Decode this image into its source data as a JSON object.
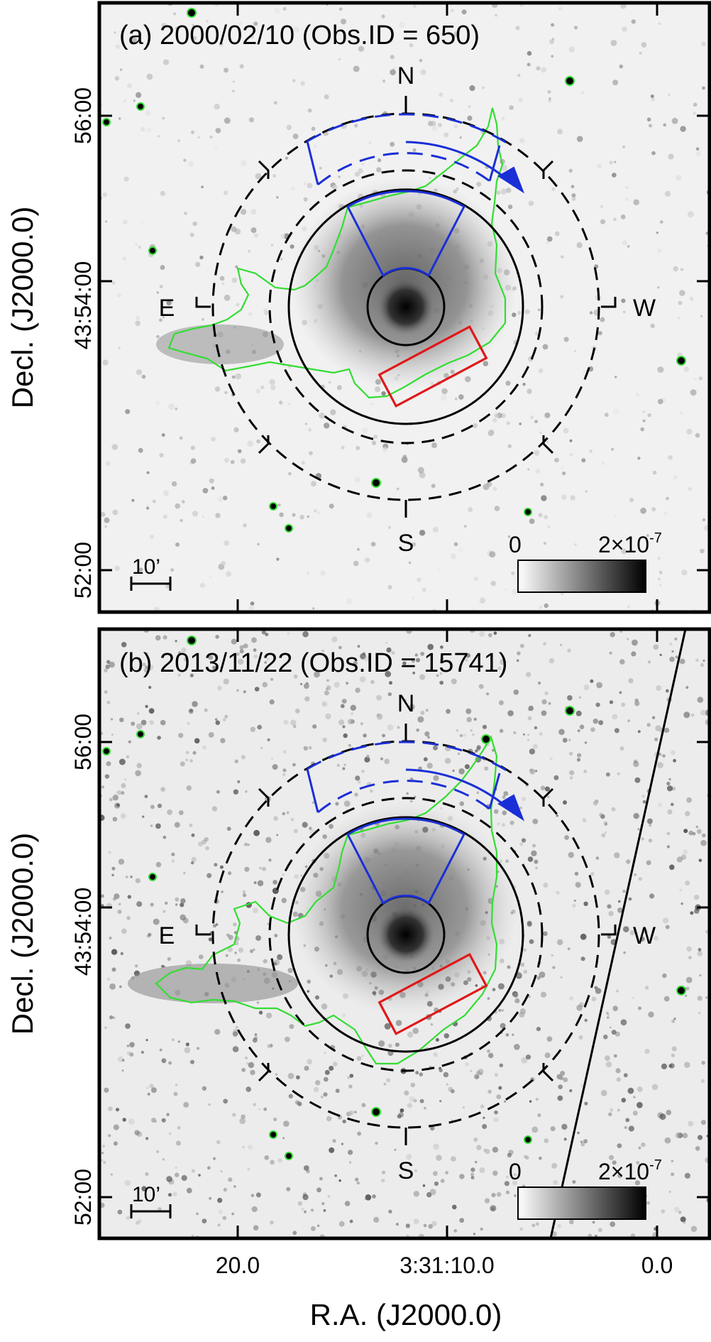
{
  "panels": [
    {
      "label": "(a) 2000/02/10 (Obs.ID = 650)",
      "compass": {
        "n": "N",
        "s": "S",
        "e": "E",
        "w": "W"
      },
      "scalebar": "10’",
      "colorbar": {
        "min": "0",
        "max": "2×10",
        "max_exp": "-7"
      },
      "y_ticks": [
        "56:00",
        "43:54:00",
        "52:00"
      ],
      "y_label": "Decl. (J2000.0)"
    },
    {
      "label": "(b) 2013/11/22 (Obs.ID = 15741)",
      "compass": {
        "n": "N",
        "s": "S",
        "e": "E",
        "w": "W"
      },
      "scalebar": "10’",
      "colorbar": {
        "min": "0",
        "max": "2×10",
        "max_exp": "-7"
      },
      "y_ticks": [
        "56:00",
        "43:54:00",
        "52:00"
      ],
      "y_label": "Decl. (J2000.0)"
    }
  ],
  "x_ticks": [
    "20.0",
    "3:31:10.0",
    "0.0"
  ],
  "x_label": "R.A. (J2000.0)",
  "colors": {
    "contour": "#33dd33",
    "sector": "#1a2fd6",
    "box": "#e01818",
    "rings": "#000000"
  }
}
